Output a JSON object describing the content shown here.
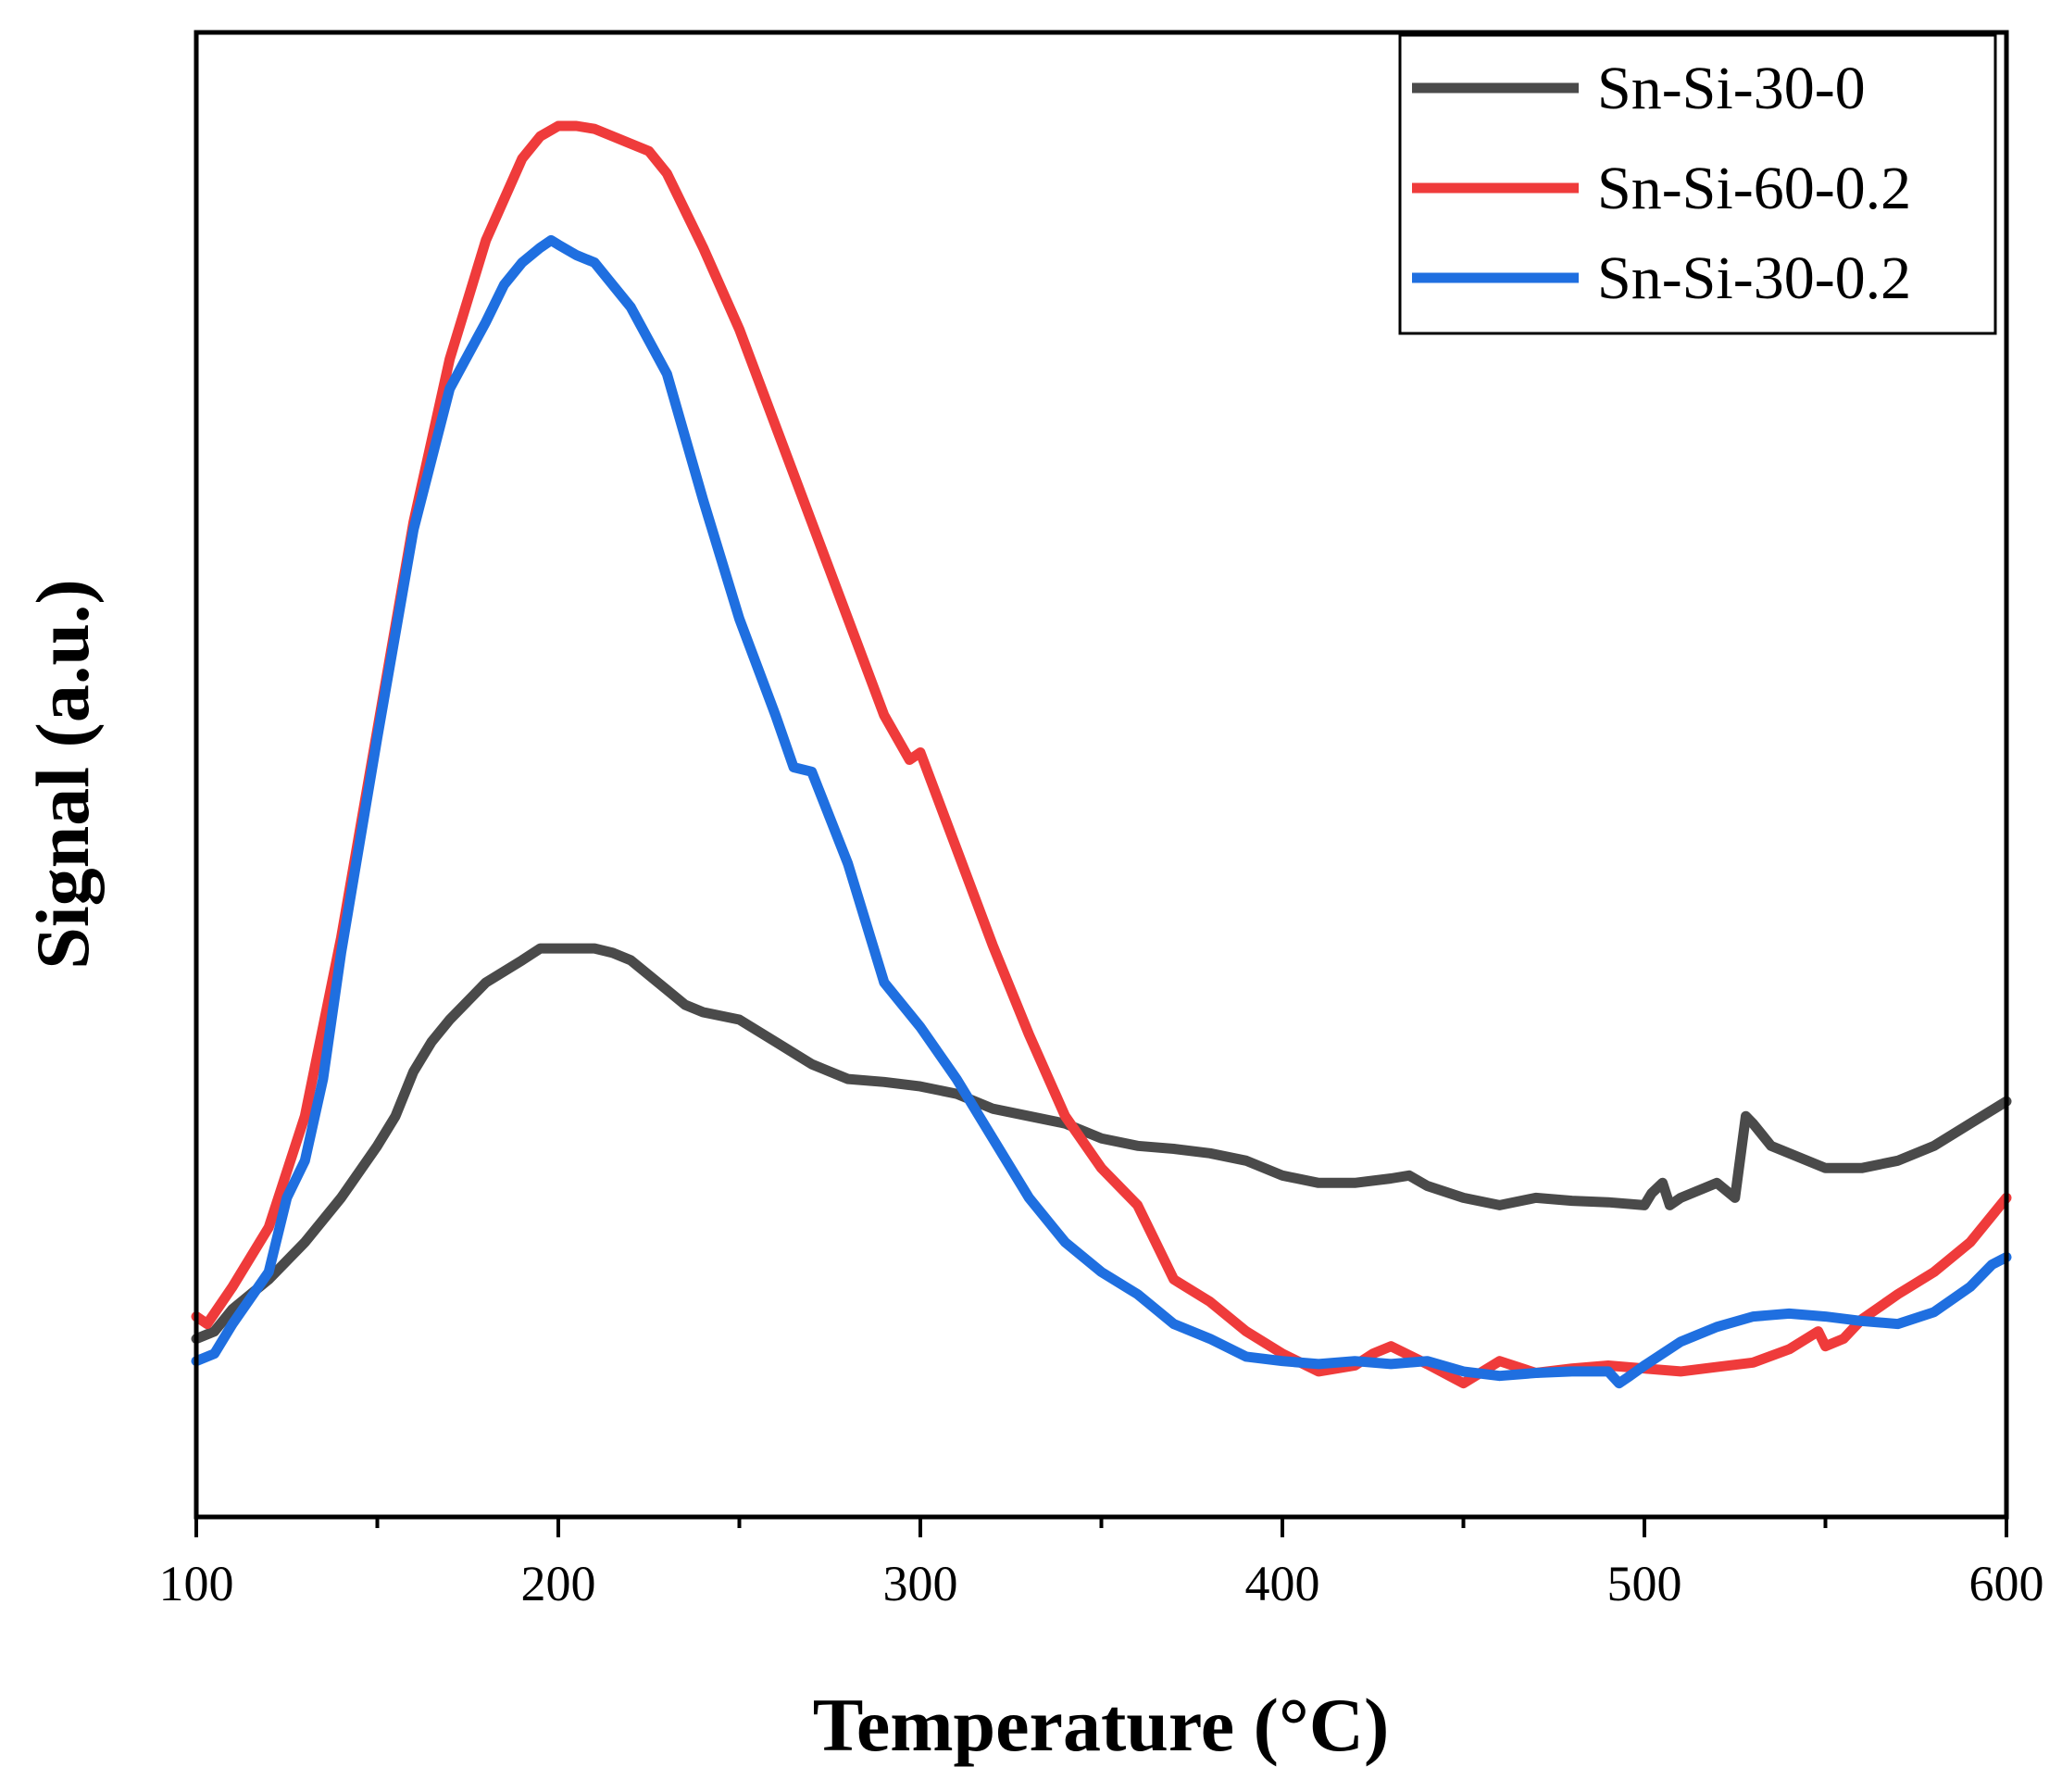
{
  "chart_data": {
    "type": "line",
    "title": "",
    "xlabel": "Temperature (°C)",
    "ylabel": "Signal (a.u.)",
    "xlim": [
      100,
      600
    ],
    "ylim": [
      0,
      100
    ],
    "xticks": [
      100,
      200,
      300,
      400,
      500,
      600
    ],
    "xtick_labels": [
      "100",
      "200",
      "300",
      "400",
      "500",
      "600"
    ],
    "y_ticks_shown": false,
    "grid": false,
    "legend_position": "top-right",
    "series": [
      {
        "name": "Sn-Si-30-0",
        "color": "#4a4a4a",
        "x": [
          100,
          105,
          110,
          120,
          130,
          140,
          150,
          155,
          160,
          165,
          170,
          180,
          190,
          195,
          200,
          205,
          210,
          215,
          220,
          230,
          235,
          240,
          250,
          260,
          270,
          280,
          290,
          300,
          310,
          320,
          330,
          340,
          350,
          360,
          370,
          380,
          390,
          400,
          410,
          420,
          430,
          435,
          440,
          450,
          460,
          470,
          480,
          490,
          500,
          502,
          505,
          507,
          510,
          520,
          525,
          528,
          530,
          535,
          540,
          550,
          560,
          570,
          580,
          590,
          600
        ],
        "y": [
          12,
          12.5,
          14,
          16,
          18.5,
          21.5,
          25,
          27,
          30,
          32,
          33.5,
          36,
          37.5,
          38.3,
          38.3,
          38.3,
          38.3,
          38,
          37.5,
          35.5,
          34.5,
          34,
          33.5,
          32,
          30.5,
          29.5,
          29.3,
          29,
          28.5,
          27.5,
          27,
          26.5,
          25.5,
          25,
          24.8,
          24.5,
          24,
          23,
          22.5,
          22.5,
          22.8,
          23,
          22.3,
          21.5,
          21,
          21.5,
          21.3,
          21.2,
          21,
          21.8,
          22.5,
          21,
          21.5,
          22.5,
          21.5,
          27,
          26.5,
          25,
          24.5,
          23.5,
          23.5,
          24,
          25,
          26.5,
          28
        ]
      },
      {
        "name": "Sn-Si-60-0.2",
        "color": "#ef3b3b",
        "x": [
          100,
          103,
          110,
          120,
          130,
          140,
          150,
          160,
          170,
          180,
          190,
          195,
          200,
          205,
          210,
          215,
          220,
          225,
          230,
          240,
          250,
          260,
          270,
          280,
          290,
          297,
          300,
          310,
          320,
          330,
          340,
          350,
          360,
          370,
          380,
          390,
          400,
          410,
          420,
          425,
          430,
          440,
          450,
          460,
          470,
          480,
          490,
          500,
          510,
          520,
          530,
          540,
          548,
          550,
          555,
          560,
          570,
          580,
          590,
          600
        ],
        "y": [
          13.5,
          13,
          15.5,
          19.5,
          27,
          39,
          53,
          67,
          78,
          86,
          91.5,
          93,
          93.7,
          93.7,
          93.5,
          93,
          92.5,
          92,
          90.5,
          85.5,
          80,
          73.5,
          67,
          60.5,
          54,
          51,
          51.5,
          45,
          38.5,
          32.5,
          27,
          23.5,
          21,
          16,
          14.5,
          12.5,
          11,
          9.8,
          10.2,
          11,
          11.5,
          10.3,
          9,
          10.5,
          9.7,
          10,
          10.2,
          10,
          9.8,
          10.1,
          10.4,
          11.3,
          12.5,
          11.5,
          12,
          13.3,
          15,
          16.5,
          18.5,
          21.5
        ]
      },
      {
        "name": "Sn-Si-30-0.2",
        "color": "#1f6fe0",
        "x": [
          100,
          105,
          110,
          120,
          125,
          130,
          135,
          140,
          150,
          160,
          170,
          180,
          185,
          190,
          195,
          198,
          200,
          205,
          210,
          220,
          230,
          240,
          250,
          260,
          265,
          270,
          280,
          290,
          300,
          310,
          320,
          330,
          340,
          350,
          360,
          370,
          380,
          390,
          400,
          410,
          420,
          430,
          440,
          450,
          460,
          470,
          480,
          490,
          493,
          496,
          500,
          510,
          520,
          530,
          540,
          550,
          560,
          570,
          580,
          590,
          596,
          600
        ],
        "y": [
          10.5,
          11,
          13,
          16.5,
          21.5,
          24,
          29.5,
          38,
          52.5,
          66.5,
          76,
          80.5,
          83,
          84.5,
          85.5,
          86,
          85.7,
          85,
          84.5,
          81.5,
          77,
          68.5,
          60.5,
          54,
          50.5,
          50.2,
          44,
          36,
          33,
          29.5,
          25.5,
          21.5,
          18.5,
          16.5,
          15,
          13,
          12,
          10.8,
          10.5,
          10.3,
          10.5,
          10.3,
          10.5,
          9.8,
          9.5,
          9.7,
          9.8,
          9.8,
          9,
          9.5,
          10.2,
          11.8,
          12.8,
          13.5,
          13.7,
          13.5,
          13.2,
          13,
          13.8,
          15.5,
          17,
          17.5
        ]
      }
    ]
  }
}
